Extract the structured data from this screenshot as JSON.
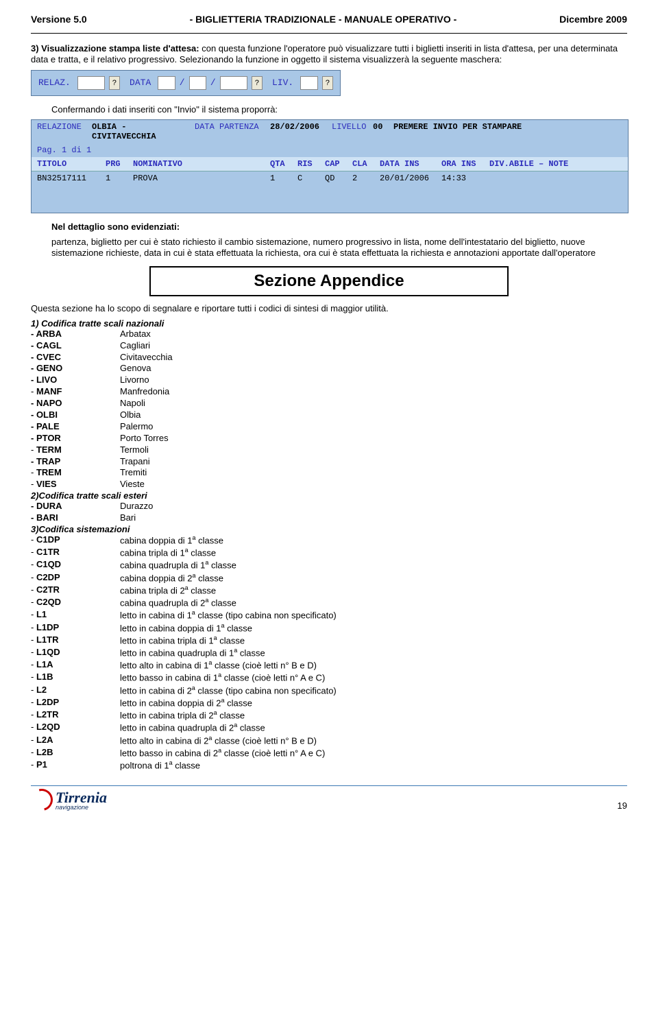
{
  "header": {
    "left": "Versione 5.0",
    "center": "-  BIGLIETTERIA  TRADIZIONALE  -   MANUALE  OPERATIVO  -",
    "right": "Dicembre 2009"
  },
  "p3_title": "3) Visualizzazione stampa liste d'attesa:",
  "p3_body": " con questa funzione l'operatore può visualizzare tutti i biglietti inseriti in lista d'attesa, per una determinata data e tratta, e il relativo progressivo. Selezionando la funzione in oggetto il sistema visualizzerà la seguente maschera:",
  "mask1": {
    "relaz": "RELAZ.",
    "data": "DATA",
    "liv": "LIV."
  },
  "p_conf": "Confermando i dati inseriti con \"Invio\" il sistema proporrà:",
  "mask2": {
    "row1": {
      "rel_lbl": "RELAZIONE",
      "rel_val": "OLBIA - CIVITAVECCHIA",
      "dp_lbl": "DATA PARTENZA",
      "dp_val": "28/02/2006",
      "liv_lbl": "LIVELLO",
      "liv_val": "00",
      "tail": "PREMERE INVIO PER STAMPARE"
    },
    "pag": "Pag. 1 di 1",
    "hdr": [
      "TITOLO",
      "PRG",
      "NOMINATIVO",
      "QTA",
      "RIS",
      "CAP",
      "CLA",
      "DATA INS",
      "ORA INS",
      "DIV.ABILE – NOTE"
    ],
    "data": [
      "BN32517111",
      "1",
      "PROVA",
      "1",
      "C",
      "QD",
      "2",
      "20/01/2006",
      "14:33",
      ""
    ]
  },
  "det_title": "Nel dettaglio sono evidenziati:",
  "det_body": "partenza,  biglietto per cui è stato richiesto il cambio sistemazione,  numero progressivo in lista, nome dell'intestatario del biglietto,  nuove sistemazione richieste, data in cui è stata effettuata la richiesta,  ora cui è stata effettuata la richiesta e  annotazioni apportate dall'operatore",
  "appendix_title": "Sezione Appendice",
  "appendix_intro": "Questa sezione ha lo scopo di segnalare e riportare tutti i codici di sintesi di maggior utilità.",
  "t1": "1) Codifica tratte scali nazionali",
  "nat": [
    [
      "- ARBA",
      "Arbatax"
    ],
    [
      "- CAGL",
      "Cagliari"
    ],
    [
      "- CVEC",
      "Civitavecchia"
    ],
    [
      "- GENO",
      "Genova"
    ],
    [
      "- LIVO",
      "Livorno"
    ],
    [
      "- MANF",
      "Manfredonia"
    ],
    [
      "- NAPO",
      "Napoli"
    ],
    [
      "- OLBI",
      "Olbia"
    ],
    [
      "- PALE",
      "Palermo"
    ],
    [
      "- PTOR",
      "Porto Torres"
    ],
    [
      "- TERM",
      "Termoli"
    ],
    [
      "- TRAP",
      "Trapani"
    ],
    [
      "- TREM",
      "Tremiti"
    ],
    [
      "- VIES",
      "Vieste"
    ]
  ],
  "t2": "2)Codifica tratte scali esteri",
  "est": [
    [
      "- DURA",
      "Durazzo"
    ],
    [
      "- BARI",
      "Bari"
    ]
  ],
  "t3": "3)Codifica sistemazioni",
  "sist": [
    [
      "- C1DP",
      "cabina doppia di 1",
      "a",
      " classe"
    ],
    [
      "- C1TR",
      "cabina tripla di 1",
      "a",
      " classe"
    ],
    [
      "- C1QD",
      "cabina quadrupla di 1",
      "a",
      " classe"
    ],
    [
      "- C2DP",
      "cabina doppia di 2",
      "a",
      " classe"
    ],
    [
      "- C2TR",
      "cabina tripla di 2",
      "a",
      " classe"
    ],
    [
      "- C2QD",
      "cabina quadrupla di 2",
      "a",
      " classe"
    ],
    [
      "- L1",
      "letto in cabina di 1",
      "a",
      " classe (tipo cabina non specificato)"
    ],
    [
      "- L1DP",
      "letto in cabina doppia di 1",
      "a",
      " classe"
    ],
    [
      "- L1TR",
      "letto in cabina tripla di 1",
      "a",
      " classe"
    ],
    [
      "- L1QD",
      "letto in cabina quadrupla di 1",
      "a",
      " classe"
    ],
    [
      "- L1A",
      "letto alto in cabina di 1",
      "a",
      " classe (cioè letti n° B e D)"
    ],
    [
      "- L1B",
      "letto basso in cabina di 1",
      "a",
      " classe (cioè letti n° A e C)"
    ],
    [
      "- L2",
      "letto in cabina di 2",
      "a",
      " classe (tipo cabina non specificato)"
    ],
    [
      "- L2DP",
      "letto in cabina doppia di 2",
      "a",
      " classe"
    ],
    [
      "- L2TR",
      "letto in cabina tripla di 2",
      "a",
      " classe"
    ],
    [
      "- L2QD",
      "letto in cabina quadrupla di 2",
      "a",
      " classe"
    ],
    [
      "- L2A",
      "letto alto in cabina di 2",
      "a",
      " classe (cioè letti n° B e D)"
    ],
    [
      "- L2B",
      "letto basso in cabina di 2",
      "a",
      " classe (cioè letti n° A e C)"
    ],
    [
      "- P1",
      "poltrona di 1",
      "a",
      " classe"
    ]
  ],
  "logo": {
    "name": "Tirrenia",
    "sub": "navigazione"
  },
  "page_num": "19",
  "mask2_widths": [
    100,
    40,
    200,
    40,
    40,
    40,
    40,
    90,
    70,
    130
  ]
}
